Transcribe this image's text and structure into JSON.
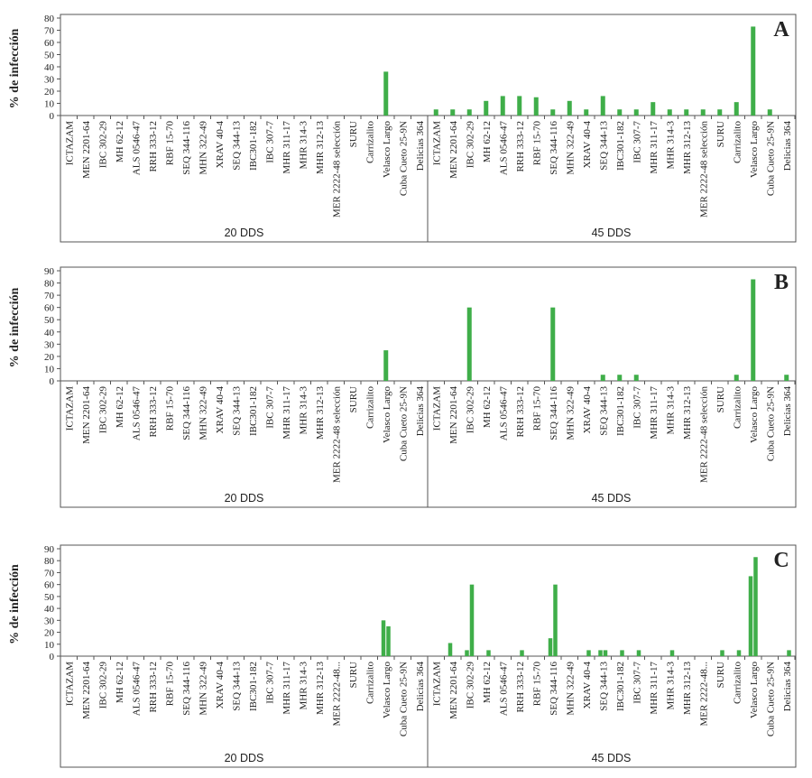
{
  "figure": {
    "accent_color": "#3fae49",
    "categories": [
      "ICTAZAM",
      "MEN 2201-64",
      "IBC 302-29",
      "MH 62-12",
      "ALS 0546-47",
      "RRH 333-12",
      "RBF 15-70",
      "SEQ 344-116",
      "MHN 322-49",
      "XRAV 40-4",
      "SEQ 344-13",
      "IBC301-182",
      "IBC 307-7",
      "MHR 311-17",
      "MHR 314-3",
      "MHR 312-13",
      "MER 2222-48 selección",
      "SURU",
      "Carrizalito",
      "Velasco Largo",
      "Cuba Cueto 25-9N",
      "Delicias 364"
    ],
    "categories_c": [
      "ICTAZAM",
      "MEN 2201-64",
      "IBC 302-29",
      "MH 62-12",
      "ALS 0546-47",
      "RRH 333-12",
      "RBF 15-70",
      "SEQ 344-116",
      "MHN 322-49",
      "XRAV 40-4",
      "SEQ 344-13",
      "IBC301-182",
      "IBC 307-7",
      "MHR 311-17",
      "MHR 314-3",
      "MHR 312-13",
      "MER 2222-48...",
      "SURU",
      "Carrizalito",
      "Velasco Largo",
      "Cuba Cueto 25-9N",
      "Delicias 364"
    ]
  },
  "chart_data": [
    {
      "type": "bar",
      "panel_label": "A",
      "ylabel": "% de infección",
      "ylim": [
        0,
        80
      ],
      "yticks": [
        0,
        10,
        20,
        30,
        40,
        50,
        60,
        70,
        80
      ],
      "groups": [
        {
          "label": "20 DDS",
          "series": [
            [
              0,
              0,
              0,
              0,
              0,
              0,
              0,
              0,
              0,
              0,
              0,
              0,
              0,
              0,
              0,
              0,
              0,
              0,
              0,
              36,
              0,
              0
            ]
          ]
        },
        {
          "label": "45 DDS",
          "series": [
            [
              5,
              5,
              5,
              12,
              16,
              16,
              15,
              5,
              12,
              5,
              16,
              5,
              5,
              11,
              5,
              5,
              5,
              5,
              11,
              73,
              5,
              0
            ]
          ]
        }
      ]
    },
    {
      "type": "bar",
      "panel_label": "B",
      "ylabel": "% de infección",
      "ylim": [
        0,
        90
      ],
      "yticks": [
        0,
        10,
        20,
        30,
        40,
        50,
        60,
        70,
        80,
        90
      ],
      "groups": [
        {
          "label": "20 DDS",
          "series": [
            [
              0,
              0,
              0,
              0,
              0,
              0,
              0,
              0,
              0,
              0,
              0,
              0,
              0,
              0,
              0,
              0,
              0,
              0,
              0,
              25,
              0,
              0
            ]
          ]
        },
        {
          "label": "45 DDS",
          "series": [
            [
              0,
              0,
              60,
              0,
              0,
              0,
              0,
              60,
              0,
              0,
              5,
              5,
              5,
              0,
              0,
              0,
              0,
              0,
              5,
              83,
              0,
              5
            ]
          ]
        }
      ]
    },
    {
      "type": "bar",
      "panel_label": "C",
      "ylabel": "% de infección",
      "ylim": [
        0,
        90
      ],
      "yticks": [
        0,
        10,
        20,
        30,
        40,
        50,
        60,
        70,
        80,
        90
      ],
      "groups": [
        {
          "label": "20 DDS",
          "series": [
            [
              0,
              0,
              0,
              0,
              0,
              0,
              0,
              0,
              0,
              0,
              0,
              0,
              0,
              0,
              0,
              0,
              0,
              0,
              0,
              30,
              0,
              0
            ],
            [
              0,
              0,
              0,
              0,
              0,
              0,
              0,
              0,
              0,
              0,
              0,
              0,
              0,
              0,
              0,
              0,
              0,
              0,
              0,
              25,
              0,
              0
            ]
          ]
        },
        {
          "label": "45 DDS",
          "series": [
            [
              0,
              11,
              5,
              0,
              0,
              0,
              0,
              15,
              0,
              0,
              5,
              0,
              0,
              0,
              0,
              0,
              0,
              0,
              0,
              67,
              0,
              0
            ],
            [
              0,
              0,
              60,
              5,
              0,
              5,
              0,
              60,
              0,
              5,
              5,
              5,
              5,
              0,
              5,
              0,
              0,
              5,
              5,
              83,
              0,
              5
            ]
          ]
        }
      ]
    }
  ]
}
